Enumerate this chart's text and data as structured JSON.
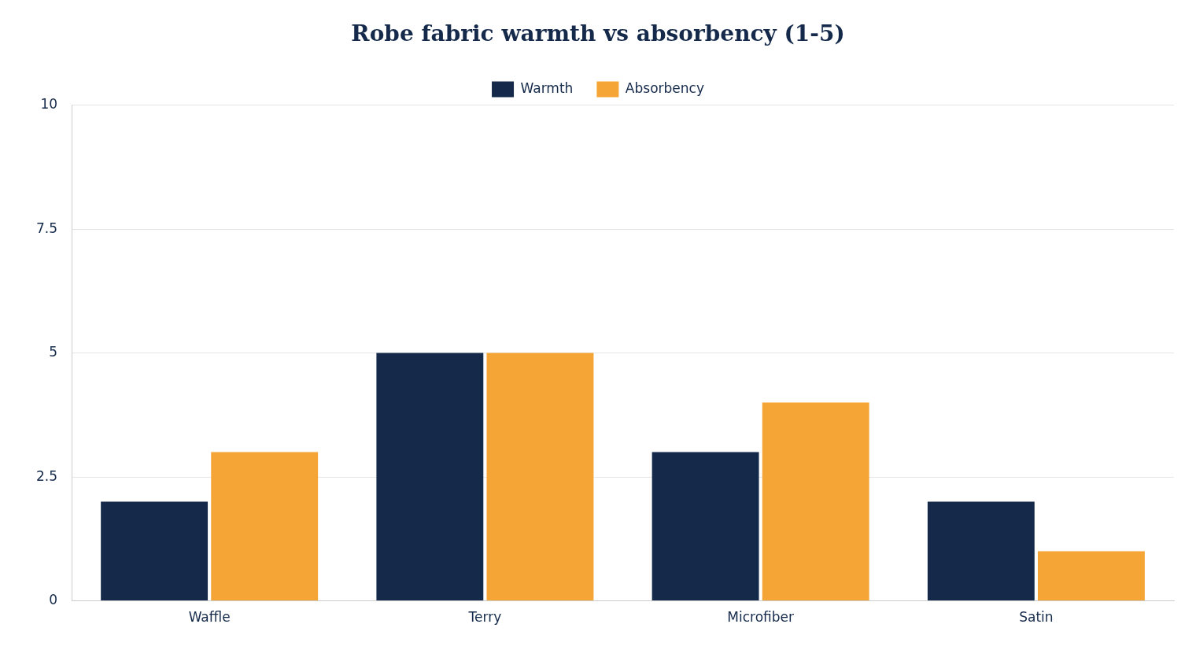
{
  "chart_data": {
    "type": "bar",
    "title": "Robe fabric warmth vs absorbency (1-5)",
    "categories": [
      "Waffle",
      "Terry",
      "Microfiber",
      "Satin"
    ],
    "series": [
      {
        "name": "Warmth",
        "color": "#152a4b",
        "values": [
          2,
          5,
          3,
          2
        ]
      },
      {
        "name": "Absorbency",
        "color": "#f5a535",
        "values": [
          3,
          5,
          4,
          1
        ]
      }
    ],
    "ylim": [
      0,
      10
    ],
    "yticks": [
      0,
      2.5,
      5,
      7.5,
      10
    ],
    "grid": "y",
    "legend": "top"
  }
}
